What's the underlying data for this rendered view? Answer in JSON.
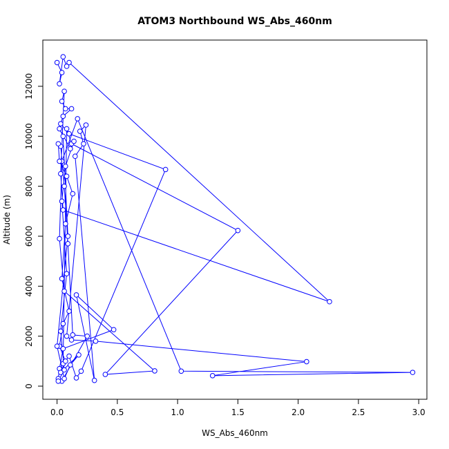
{
  "chart_data": {
    "type": "line",
    "title": "ATOM3 Northbound WS_Abs_460nm",
    "x_label": "WS_Abs_460nm",
    "y_label": "Altitude (m)",
    "color": "#0000ff",
    "markers": true,
    "x": [
      0.0,
      0.04,
      0.02,
      0.05,
      0.08,
      0.1,
      2.26,
      0.05,
      0.03,
      0.06,
      0.04,
      0.07,
      0.12,
      0.05,
      0.03,
      0.1,
      0.9,
      0.2,
      0.16,
      0.1,
      0.05,
      0.08,
      0.12,
      1.5,
      0.4,
      0.81,
      0.06,
      0.02,
      0.04,
      0.17,
      1.03,
      2.95,
      1.29,
      2.07,
      0.32,
      0.12,
      0.08,
      0.24,
      0.19,
      0.22,
      0.15,
      0.31,
      0.16,
      0.47,
      0.05,
      0.02,
      0.01,
      0.04,
      0.25,
      0.13,
      0.09,
      0.06,
      0.03,
      0.01,
      0.02,
      0.08,
      0.13,
      0.07,
      0.04,
      0.1,
      0.05,
      0.02,
      0.07,
      0.03,
      0.18,
      0.11,
      0.06,
      0.0,
      0.09,
      0.05,
      0.02,
      0.11,
      0.14,
      0.07,
      0.04,
      0.08,
      0.03,
      0.06,
      0.01
    ],
    "y": [
      12950,
      12550,
      12100,
      13180,
      12800,
      12950,
      3380,
      7050,
      8500,
      11800,
      11400,
      11100,
      11100,
      10800,
      10500,
      10100,
      8670,
      600,
      330,
      1200,
      900,
      10300,
      9700,
      6230,
      470,
      610,
      3800,
      5900,
      9000,
      10700,
      600,
      550,
      420,
      980,
      1800,
      1850,
      2000,
      10450,
      10200,
      9700,
      9200,
      230,
      3650,
      2260,
      1500,
      700,
      300,
      200,
      2000,
      2050,
      5700,
      8000,
      9600,
      9700,
      9000,
      8400,
      7700,
      6500,
      4300,
      3000,
      2500,
      1600,
      1000,
      550,
      1250,
      850,
      300,
      1600,
      6000,
      10000,
      10300,
      9500,
      9800,
      8800,
      7400,
      4500,
      2200,
      650,
      200
    ],
    "xlim": [
      -0.118,
      3.068
    ],
    "ylim": [
      -525,
      13850
    ],
    "xticks": [
      {
        "value": 0,
        "label": "0.0"
      },
      {
        "value": 0.5,
        "label": "0.5"
      },
      {
        "value": 1,
        "label": "1.0"
      },
      {
        "value": 1.5,
        "label": "1.5"
      },
      {
        "value": 2,
        "label": "2.0"
      },
      {
        "value": 2.5,
        "label": "2.5"
      },
      {
        "value": 3,
        "label": "3.0"
      }
    ],
    "yticks": [
      0,
      2000,
      4000,
      6000,
      8000,
      10000,
      12000
    ]
  }
}
